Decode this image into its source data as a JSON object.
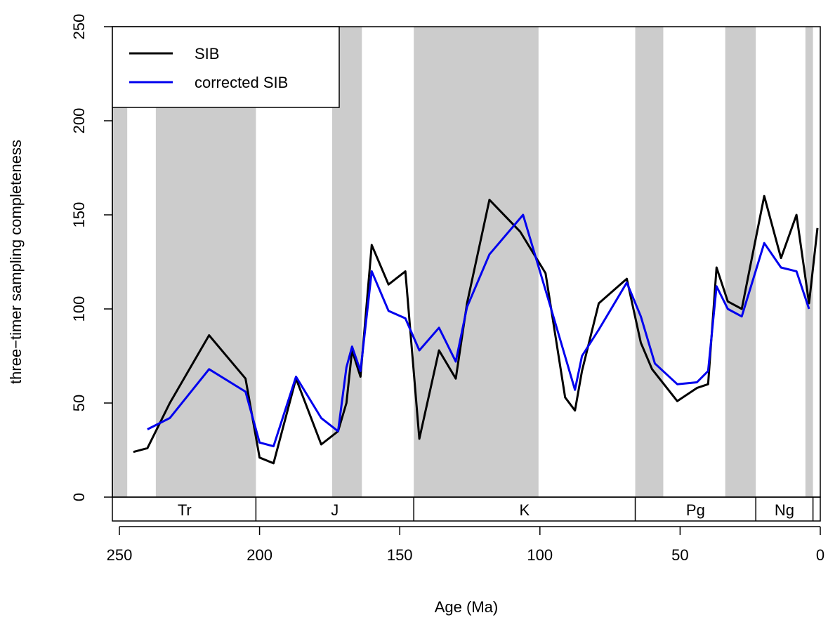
{
  "chart_data": {
    "type": "line",
    "xlabel": "Age (Ma)",
    "ylabel": "three−timer sampling completeness",
    "xlim": [
      252.5,
      0
    ],
    "ylim": [
      0,
      250
    ],
    "x_ticks": [
      "250",
      "200",
      "150",
      "100",
      "50",
      "0"
    ],
    "y_ticks": [
      "0",
      "50",
      "100",
      "150",
      "200",
      "250"
    ],
    "grid": false,
    "legend": {
      "placement": "top-left",
      "entries": [
        "SIB",
        "corrected SIB"
      ]
    },
    "shaded_intervals": [
      [
        252.2,
        247.2
      ],
      [
        237.0,
        201.3
      ],
      [
        174.1,
        163.5
      ],
      [
        145.0,
        100.5
      ],
      [
        66.0,
        56.0
      ],
      [
        33.9,
        23.0
      ],
      [
        5.3,
        2.6
      ]
    ],
    "periods": [
      {
        "label": "Tr",
        "start": 252.2,
        "end": 201.3
      },
      {
        "label": "J",
        "start": 201.3,
        "end": 145.0
      },
      {
        "label": "K",
        "start": 145.0,
        "end": 66.0
      },
      {
        "label": "Pg",
        "start": 66.0,
        "end": 23.0
      },
      {
        "label": "Ng",
        "start": 23.0,
        "end": 2.6
      },
      {
        "label": "",
        "start": 2.6,
        "end": 0.0
      }
    ],
    "series": [
      {
        "name": "SIB",
        "color": "#000000",
        "points": [
          [
            245.0,
            24
          ],
          [
            240.0,
            26
          ],
          [
            232.0,
            50
          ],
          [
            218.0,
            86
          ],
          [
            205.0,
            63
          ],
          [
            200.0,
            21
          ],
          [
            195.0,
            18
          ],
          [
            187.0,
            63
          ],
          [
            178.0,
            28
          ],
          [
            172.0,
            35
          ],
          [
            169.0,
            50
          ],
          [
            167.0,
            78
          ],
          [
            164.0,
            64
          ],
          [
            160.0,
            134
          ],
          [
            154.0,
            113
          ],
          [
            148.0,
            120
          ],
          [
            143.0,
            31
          ],
          [
            136.0,
            78
          ],
          [
            130.0,
            63
          ],
          [
            126.0,
            103
          ],
          [
            118.0,
            158
          ],
          [
            107.0,
            141
          ],
          [
            98.0,
            119
          ],
          [
            91.0,
            53
          ],
          [
            87.5,
            46
          ],
          [
            85.0,
            67
          ],
          [
            79.0,
            103
          ],
          [
            69.0,
            116
          ],
          [
            64.0,
            82
          ],
          [
            60.0,
            68
          ],
          [
            51.0,
            51
          ],
          [
            44.0,
            58
          ],
          [
            40.0,
            60
          ],
          [
            37.0,
            122
          ],
          [
            33.0,
            104
          ],
          [
            28.0,
            100
          ],
          [
            20.0,
            160
          ],
          [
            14.0,
            127
          ],
          [
            8.5,
            150
          ],
          [
            4.0,
            103
          ],
          [
            1.0,
            143
          ]
        ]
      },
      {
        "name": "corrected SIB",
        "color": "#0000ee",
        "points": [
          [
            240.0,
            36
          ],
          [
            232.0,
            42
          ],
          [
            218.0,
            68
          ],
          [
            205.0,
            56
          ],
          [
            200.0,
            29
          ],
          [
            195.0,
            27
          ],
          [
            187.0,
            64
          ],
          [
            178.0,
            42
          ],
          [
            172.0,
            35
          ],
          [
            169.0,
            69
          ],
          [
            167.0,
            80
          ],
          [
            164.0,
            67
          ],
          [
            160.0,
            120
          ],
          [
            154.0,
            99
          ],
          [
            148.0,
            95
          ],
          [
            143.0,
            78
          ],
          [
            136.0,
            90
          ],
          [
            130.0,
            72
          ],
          [
            126.0,
            101
          ],
          [
            118.0,
            129
          ],
          [
            106.0,
            150
          ],
          [
            96.0,
            100
          ],
          [
            87.5,
            57
          ],
          [
            85.0,
            75
          ],
          [
            79.0,
            89
          ],
          [
            69.0,
            114
          ],
          [
            64.0,
            96
          ],
          [
            59.0,
            71
          ],
          [
            51.0,
            60
          ],
          [
            44.0,
            61
          ],
          [
            40.0,
            67
          ],
          [
            37.0,
            112
          ],
          [
            33.0,
            100
          ],
          [
            28.0,
            96
          ],
          [
            20.0,
            135
          ],
          [
            14.0,
            122
          ],
          [
            8.5,
            120
          ],
          [
            4.0,
            100
          ]
        ]
      }
    ]
  }
}
